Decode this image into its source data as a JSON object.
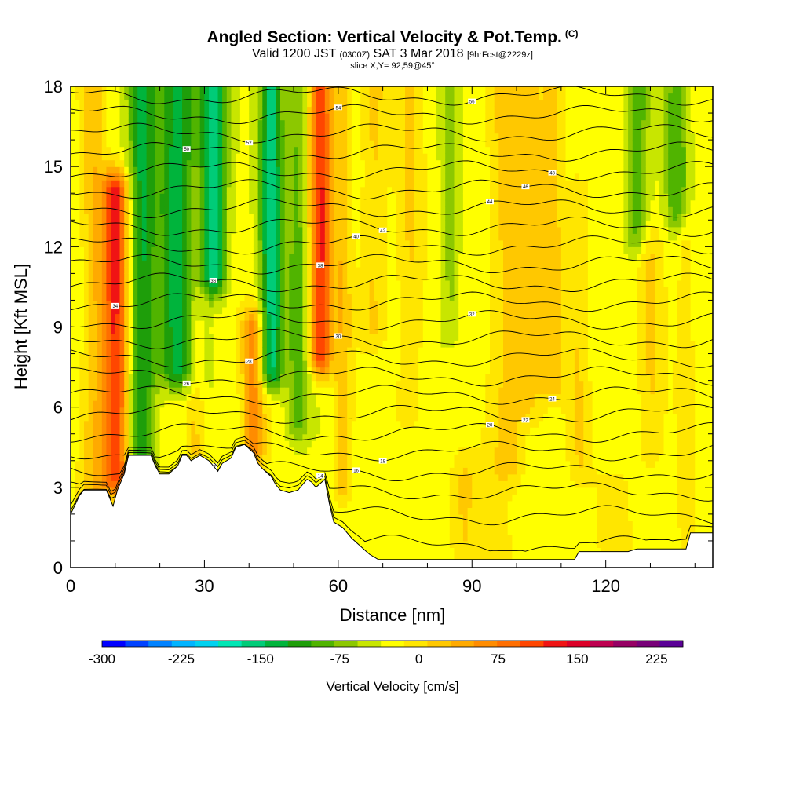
{
  "title": {
    "main": "Angled Section: Vertical Velocity & Pot.Temp.",
    "main_tag": "(C)",
    "valid_prefix": "Valid 1200 JST",
    "valid_utc": "(0300Z)",
    "valid_date": "SAT 3 Mar 2018",
    "forecast": "[9hrFcst@2229z]",
    "slice": "slice X,Y= 92,59@45°"
  },
  "chart_data": {
    "type": "heatmap",
    "xlabel": "Distance [nm]",
    "ylabel": "Height [Kft MSL]",
    "xlim": [
      0,
      144
    ],
    "ylim": [
      0,
      18
    ],
    "xticks": [
      0,
      30,
      60,
      90,
      120
    ],
    "yticks": [
      0,
      3,
      6,
      9,
      12,
      15,
      18
    ],
    "colorbar": {
      "label": "Vertical Velocity [cm/s]",
      "min": -300,
      "max": 250,
      "step": 25,
      "ticks": [
        -300,
        -225,
        -150,
        -75,
        0,
        75,
        150,
        225
      ],
      "colors": [
        "#0000ff",
        "#0042ff",
        "#0082ff",
        "#00b4ff",
        "#00d2f0",
        "#00e6b4",
        "#00cc78",
        "#00b43c",
        "#1e9e0a",
        "#50b400",
        "#8cc800",
        "#c8e600",
        "#ffff00",
        "#ffe600",
        "#ffc800",
        "#ffaa00",
        "#ff8c00",
        "#ff6e00",
        "#ff4600",
        "#f01414",
        "#dc0028",
        "#be0050",
        "#960064",
        "#780078",
        "#5a0096"
      ]
    },
    "vv_columns": [
      {
        "x": 10,
        "w": 3.0,
        "amp": 170,
        "y0": 3.5,
        "y1": 14.0
      },
      {
        "x": 5,
        "w": 2.5,
        "amp": 55,
        "y0": 2.5,
        "y1": 18
      },
      {
        "x": 16,
        "w": 3.0,
        "amp": -110,
        "y0": 4.5,
        "y1": 18
      },
      {
        "x": 24,
        "w": 4.5,
        "amp": -120,
        "y0": 7.5,
        "y1": 18
      },
      {
        "x": 32,
        "w": 3.0,
        "amp": -150,
        "y0": 11.0,
        "y1": 18
      },
      {
        "x": 28,
        "w": 2.0,
        "amp": 45,
        "y0": 4.5,
        "y1": 14
      },
      {
        "x": 41,
        "w": 2.5,
        "amp": 95,
        "y0": 4.5,
        "y1": 9
      },
      {
        "x": 45,
        "w": 2.5,
        "amp": -150,
        "y0": 7.5,
        "y1": 18
      },
      {
        "x": 51,
        "w": 2.5,
        "amp": -70,
        "y0": 5.5,
        "y1": 18
      },
      {
        "x": 56,
        "w": 2.5,
        "amp": 165,
        "y0": 8.0,
        "y1": 18
      },
      {
        "x": 61,
        "w": 2.0,
        "amp": 55,
        "y0": 3.0,
        "y1": 18
      },
      {
        "x": 68,
        "w": 3.0,
        "amp": 45,
        "y0": 9.0,
        "y1": 18
      },
      {
        "x": 76,
        "w": 3.0,
        "amp": 40,
        "y0": 6.0,
        "y1": 18
      },
      {
        "x": 85,
        "w": 2.0,
        "amp": -45,
        "y0": 9.0,
        "y1": 18
      },
      {
        "x": 88,
        "w": 3.0,
        "amp": 35,
        "y0": 1.0,
        "y1": 3.5
      },
      {
        "x": 98,
        "w": 4.0,
        "amp": 50,
        "y0": 4.0,
        "y1": 18
      },
      {
        "x": 103,
        "w": 3.0,
        "amp": 40,
        "y0": 6.0,
        "y1": 18
      },
      {
        "x": 108,
        "w": 3.0,
        "amp": 50,
        "y0": 7.0,
        "y1": 18
      },
      {
        "x": 114,
        "w": 2.5,
        "amp": 35,
        "y0": 4.0,
        "y1": 14
      },
      {
        "x": 127,
        "w": 2.5,
        "amp": -80,
        "y0": 12.5,
        "y1": 18
      },
      {
        "x": 130,
        "w": 3.0,
        "amp": 40,
        "y0": 4.5,
        "y1": 12
      },
      {
        "x": 136,
        "w": 2.5,
        "amp": -80,
        "y0": 13.5,
        "y1": 18
      },
      {
        "x": 138,
        "w": 2.0,
        "amp": 30,
        "y0": 1.0,
        "y1": 13
      },
      {
        "x": 123,
        "w": 5.0,
        "amp": 20,
        "y0": 1.0,
        "y1": 3.0
      },
      {
        "x": 92,
        "w": 8.0,
        "amp": 15,
        "y0": 0.5,
        "y1": 3.0
      }
    ],
    "terrain_kft": [
      [
        0,
        2.0
      ],
      [
        2,
        2.7
      ],
      [
        3,
        2.9
      ],
      [
        8,
        2.9
      ],
      [
        9.5,
        2.3
      ],
      [
        10.5,
        2.9
      ],
      [
        12,
        3.5
      ],
      [
        13,
        4.2
      ],
      [
        18,
        4.2
      ],
      [
        19,
        3.8
      ],
      [
        20,
        3.5
      ],
      [
        22,
        3.5
      ],
      [
        24,
        3.8
      ],
      [
        25,
        4.2
      ],
      [
        26,
        4.2
      ],
      [
        27,
        4.0
      ],
      [
        29,
        4.2
      ],
      [
        31,
        4.0
      ],
      [
        33,
        3.6
      ],
      [
        34,
        3.9
      ],
      [
        36,
        4.1
      ],
      [
        37,
        4.5
      ],
      [
        39,
        4.6
      ],
      [
        41,
        4.3
      ],
      [
        42,
        3.9
      ],
      [
        43,
        3.7
      ],
      [
        45,
        3.4
      ],
      [
        46,
        3.1
      ],
      [
        47,
        2.9
      ],
      [
        49,
        2.8
      ],
      [
        51,
        2.9
      ],
      [
        53,
        3.3
      ],
      [
        54,
        3.2
      ],
      [
        55,
        3.0
      ],
      [
        57,
        3.3
      ],
      [
        58,
        2.4
      ],
      [
        59,
        1.7
      ],
      [
        61,
        1.5
      ],
      [
        63,
        1.1
      ],
      [
        65,
        0.8
      ],
      [
        67,
        0.5
      ],
      [
        69,
        0.3
      ],
      [
        72,
        0.3
      ],
      [
        113,
        0.3
      ],
      [
        114,
        0.6
      ],
      [
        125,
        0.6
      ],
      [
        127,
        0.7
      ],
      [
        138,
        0.7
      ],
      [
        139,
        1.3
      ],
      [
        144,
        1.3
      ]
    ],
    "theta_levels": [
      {
        "base": 0.85,
        "label": ""
      },
      {
        "base": 1.95,
        "label": "12"
      },
      {
        "base": 2.85,
        "label": "14"
      },
      {
        "base": 3.6,
        "label": "16"
      },
      {
        "base": 4.35,
        "label": "18"
      },
      {
        "base": 5.05,
        "label": "20"
      },
      {
        "base": 5.75,
        "label": "22"
      },
      {
        "base": 6.45,
        "label": "24"
      },
      {
        "base": 7.15,
        "label": "26"
      },
      {
        "base": 7.85,
        "label": "28"
      },
      {
        "base": 8.55,
        "label": "30"
      },
      {
        "base": 9.25,
        "label": "32"
      },
      {
        "base": 9.95,
        "label": "34"
      },
      {
        "base": 10.65,
        "label": "36"
      },
      {
        "base": 11.35,
        "label": "38"
      },
      {
        "base": 12.05,
        "label": "40"
      },
      {
        "base": 12.75,
        "label": "42"
      },
      {
        "base": 13.45,
        "label": "44"
      },
      {
        "base": 14.15,
        "label": "46"
      },
      {
        "base": 14.85,
        "label": "48"
      },
      {
        "base": 15.55,
        "label": "50"
      },
      {
        "base": 16.25,
        "label": "52"
      },
      {
        "base": 16.95,
        "label": "54"
      },
      {
        "base": 17.65,
        "label": "56"
      }
    ]
  }
}
